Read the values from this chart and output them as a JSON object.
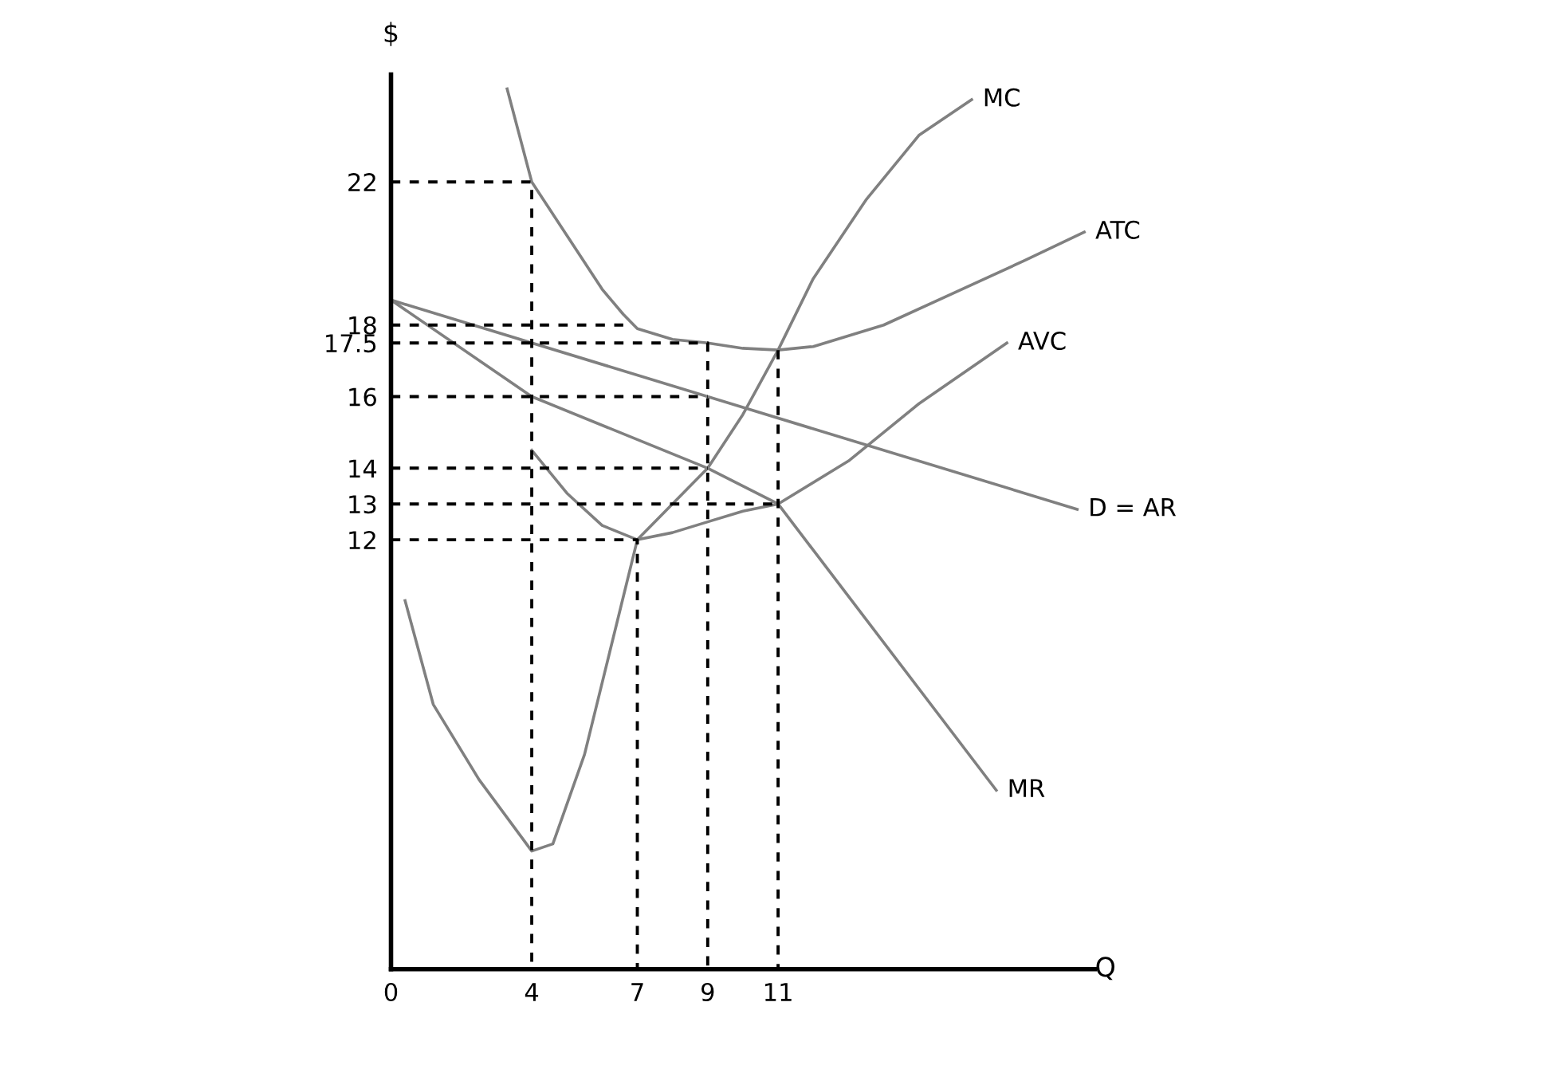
{
  "chart_data": {
    "type": "line",
    "xlabel": "Q",
    "ylabel": "$",
    "xlim": [
      0,
      20
    ],
    "ylim": [
      0,
      25
    ],
    "xticks": [
      0,
      4,
      7,
      9,
      11
    ],
    "yticks": [
      12,
      13,
      14,
      16,
      17.5,
      18,
      22
    ],
    "series": [
      {
        "name": "MC",
        "color": "#808080",
        "x": [
          0.4,
          1.2,
          2.5,
          4,
          4.6,
          5.5,
          7,
          9,
          10,
          11,
          12,
          13.5,
          15,
          16.5
        ],
        "values": [
          10.3,
          7.4,
          5.3,
          3.3,
          3.5,
          6,
          12,
          14,
          15.5,
          17.3,
          19.3,
          21.5,
          23.3,
          24.3
        ]
      },
      {
        "name": "ATC",
        "color": "#808080",
        "x": [
          3.3,
          4,
          5,
          6,
          6.6,
          7,
          8,
          9,
          10,
          11,
          12,
          14,
          16,
          18,
          19.7
        ],
        "values": [
          24.6,
          22,
          20.5,
          19,
          18.3,
          17.9,
          17.6,
          17.5,
          17.35,
          17.3,
          17.4,
          18,
          18.9,
          19.8,
          20.6
        ]
      },
      {
        "name": "AVC",
        "color": "#808080",
        "x": [
          4,
          5,
          6,
          7,
          8,
          9,
          10,
          11,
          13,
          15,
          17.5
        ],
        "values": [
          14.5,
          13.3,
          12.4,
          12,
          12.2,
          12.5,
          12.8,
          13,
          14.2,
          15.8,
          17.5
        ]
      },
      {
        "name": "D = AR",
        "color": "#808080",
        "x": [
          0,
          19.5
        ],
        "values": [
          18.7,
          12.85
        ]
      },
      {
        "name": "MR",
        "color": "#808080",
        "x": [
          0,
          4,
          9,
          11,
          17.2
        ],
        "values": [
          18.7,
          16,
          14,
          13,
          5
        ]
      },
      {
        "color": "#000000",
        "line_style": "dashed",
        "x": [
          0,
          4,
          4
        ],
        "values": [
          22,
          22,
          0
        ]
      },
      {
        "color": "#000000",
        "line_style": "dashed",
        "x": [
          0,
          6.6
        ],
        "values": [
          18,
          18
        ]
      },
      {
        "color": "#000000",
        "line_style": "dashed",
        "x": [
          0,
          9,
          9
        ],
        "values": [
          17.5,
          17.5,
          0
        ]
      },
      {
        "color": "#000000",
        "line_style": "dashed",
        "x": [
          0,
          9
        ],
        "values": [
          16,
          16
        ]
      },
      {
        "color": "#000000",
        "line_style": "dashed",
        "x": [
          0,
          9
        ],
        "values": [
          14,
          14
        ]
      },
      {
        "color": "#000000",
        "line_style": "dashed",
        "x": [
          0,
          11
        ],
        "values": [
          13,
          13
        ]
      },
      {
        "color": "#000000",
        "line_style": "dashed",
        "x": [
          11,
          11
        ],
        "values": [
          17.3,
          0
        ]
      },
      {
        "color": "#000000",
        "line_style": "dashed",
        "x": [
          0,
          7,
          7
        ],
        "values": [
          12,
          12,
          0
        ]
      }
    ]
  }
}
